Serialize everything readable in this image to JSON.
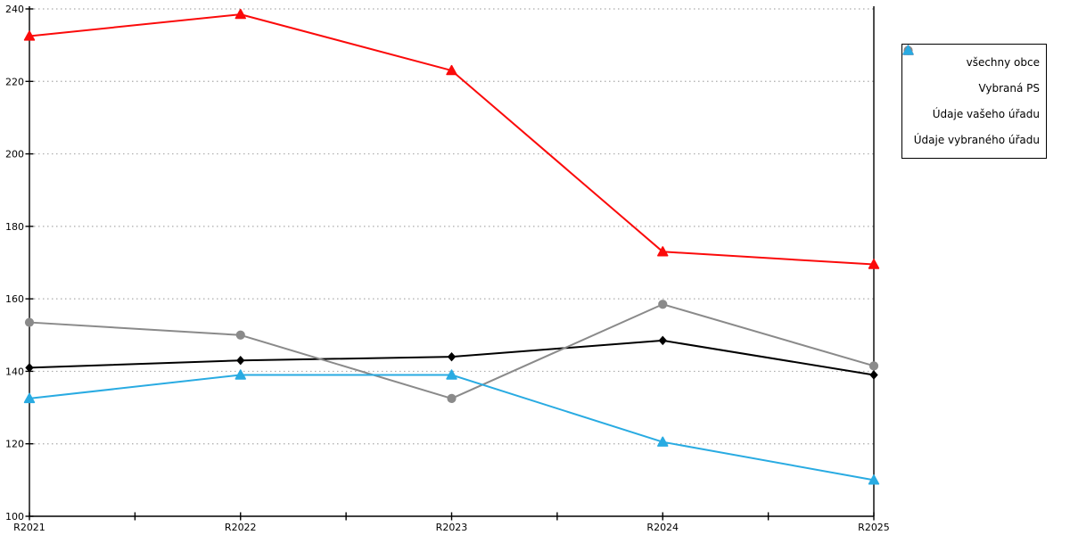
{
  "chart_data": {
    "type": "line",
    "title": "",
    "xlabel": "",
    "ylabel": "",
    "categories": [
      "R2021",
      "R2022",
      "R2023",
      "R2024",
      "R2025"
    ],
    "ylim": [
      100,
      240
    ],
    "ytick_interval": 20,
    "y_tick_labels": [
      "100",
      "120",
      "140",
      "160",
      "180",
      "200",
      "220",
      "240"
    ],
    "grid": "horizontal-dotted",
    "legend_position": "outside-top-right",
    "series": [
      {
        "name": "všechny obce",
        "color": "#000000",
        "marker": "diamond",
        "values": [
          141,
          143,
          144,
          148.5,
          139
        ]
      },
      {
        "name": "Vybraná PS",
        "color": "#8a8a8a",
        "marker": "circle",
        "values": [
          153.5,
          150,
          132.5,
          158.5,
          141.5
        ]
      },
      {
        "name": "Údaje vašeho úřadu",
        "color": "#fb0a0a",
        "marker": "triangle-up",
        "values": [
          232.5,
          238.5,
          223,
          173,
          169.5
        ]
      },
      {
        "name": "Údaje vybraného úřadu",
        "color": "#29abe2",
        "marker": "triangle-up",
        "values": [
          132.5,
          139,
          139,
          120.5,
          110
        ]
      }
    ]
  },
  "colors": {
    "background": "#ffffff",
    "axis": "#000000",
    "gridline": "#ababab",
    "legend_border": "#000000",
    "legend_background": "#ffffff"
  }
}
